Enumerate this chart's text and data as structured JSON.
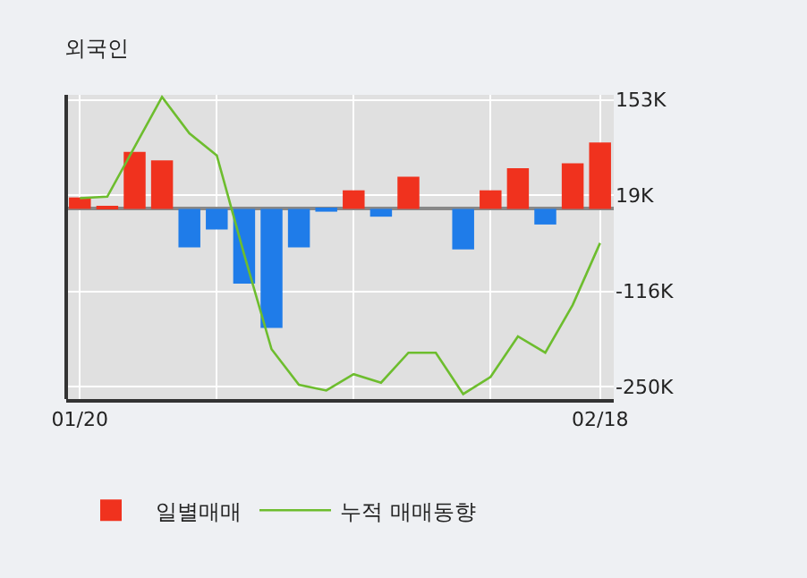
{
  "chart_data": {
    "type": "bar",
    "title": "외국인",
    "categories": [
      "01/20",
      null,
      null,
      null,
      null,
      null,
      null,
      null,
      null,
      null,
      null,
      null,
      null,
      null,
      null,
      null,
      null,
      null,
      null,
      "02/18"
    ],
    "series": [
      {
        "name": "일별매매",
        "colors": [
          "#f0321e",
          "#f0321e",
          "#f0321e",
          "#f0321e",
          "#1f7ce9",
          "#1f7ce9",
          "#1f7ce9",
          "#1f7ce9",
          "#1f7ce9",
          "#1f7ce9",
          "#f0321e",
          "#1f7ce9",
          "#f0321e",
          "#f0321e",
          "#1f7ce9",
          "#f0321e",
          "#f0321e",
          "#1f7ce9",
          "#f0321e",
          "#f0321e"
        ],
        "values": [
          16,
          4,
          80,
          68,
          -54,
          -29,
          -105,
          -167,
          -54,
          -4,
          26,
          -11,
          45,
          0,
          -57,
          26,
          57,
          -22,
          64,
          93
        ]
      },
      {
        "name": "누적 매매동향",
        "type": "line",
        "color": "#6dbd2e",
        "values": [
          15,
          17,
          87,
          157,
          106,
          75,
          -64,
          -197,
          -247,
          -255,
          -232,
          -244,
          -202,
          -202,
          -260,
          -236,
          -179,
          -202,
          -135,
          -48
        ]
      }
    ],
    "ylim": [
      -267,
      160
    ],
    "yticks": [
      {
        "value": 153,
        "label": "153K"
      },
      {
        "value": 19,
        "label": "19K"
      },
      {
        "value": -116,
        "label": "-116K"
      },
      {
        "value": -250,
        "label": "-250K"
      }
    ],
    "grid": true,
    "legend": "bottom",
    "marker": "none"
  }
}
